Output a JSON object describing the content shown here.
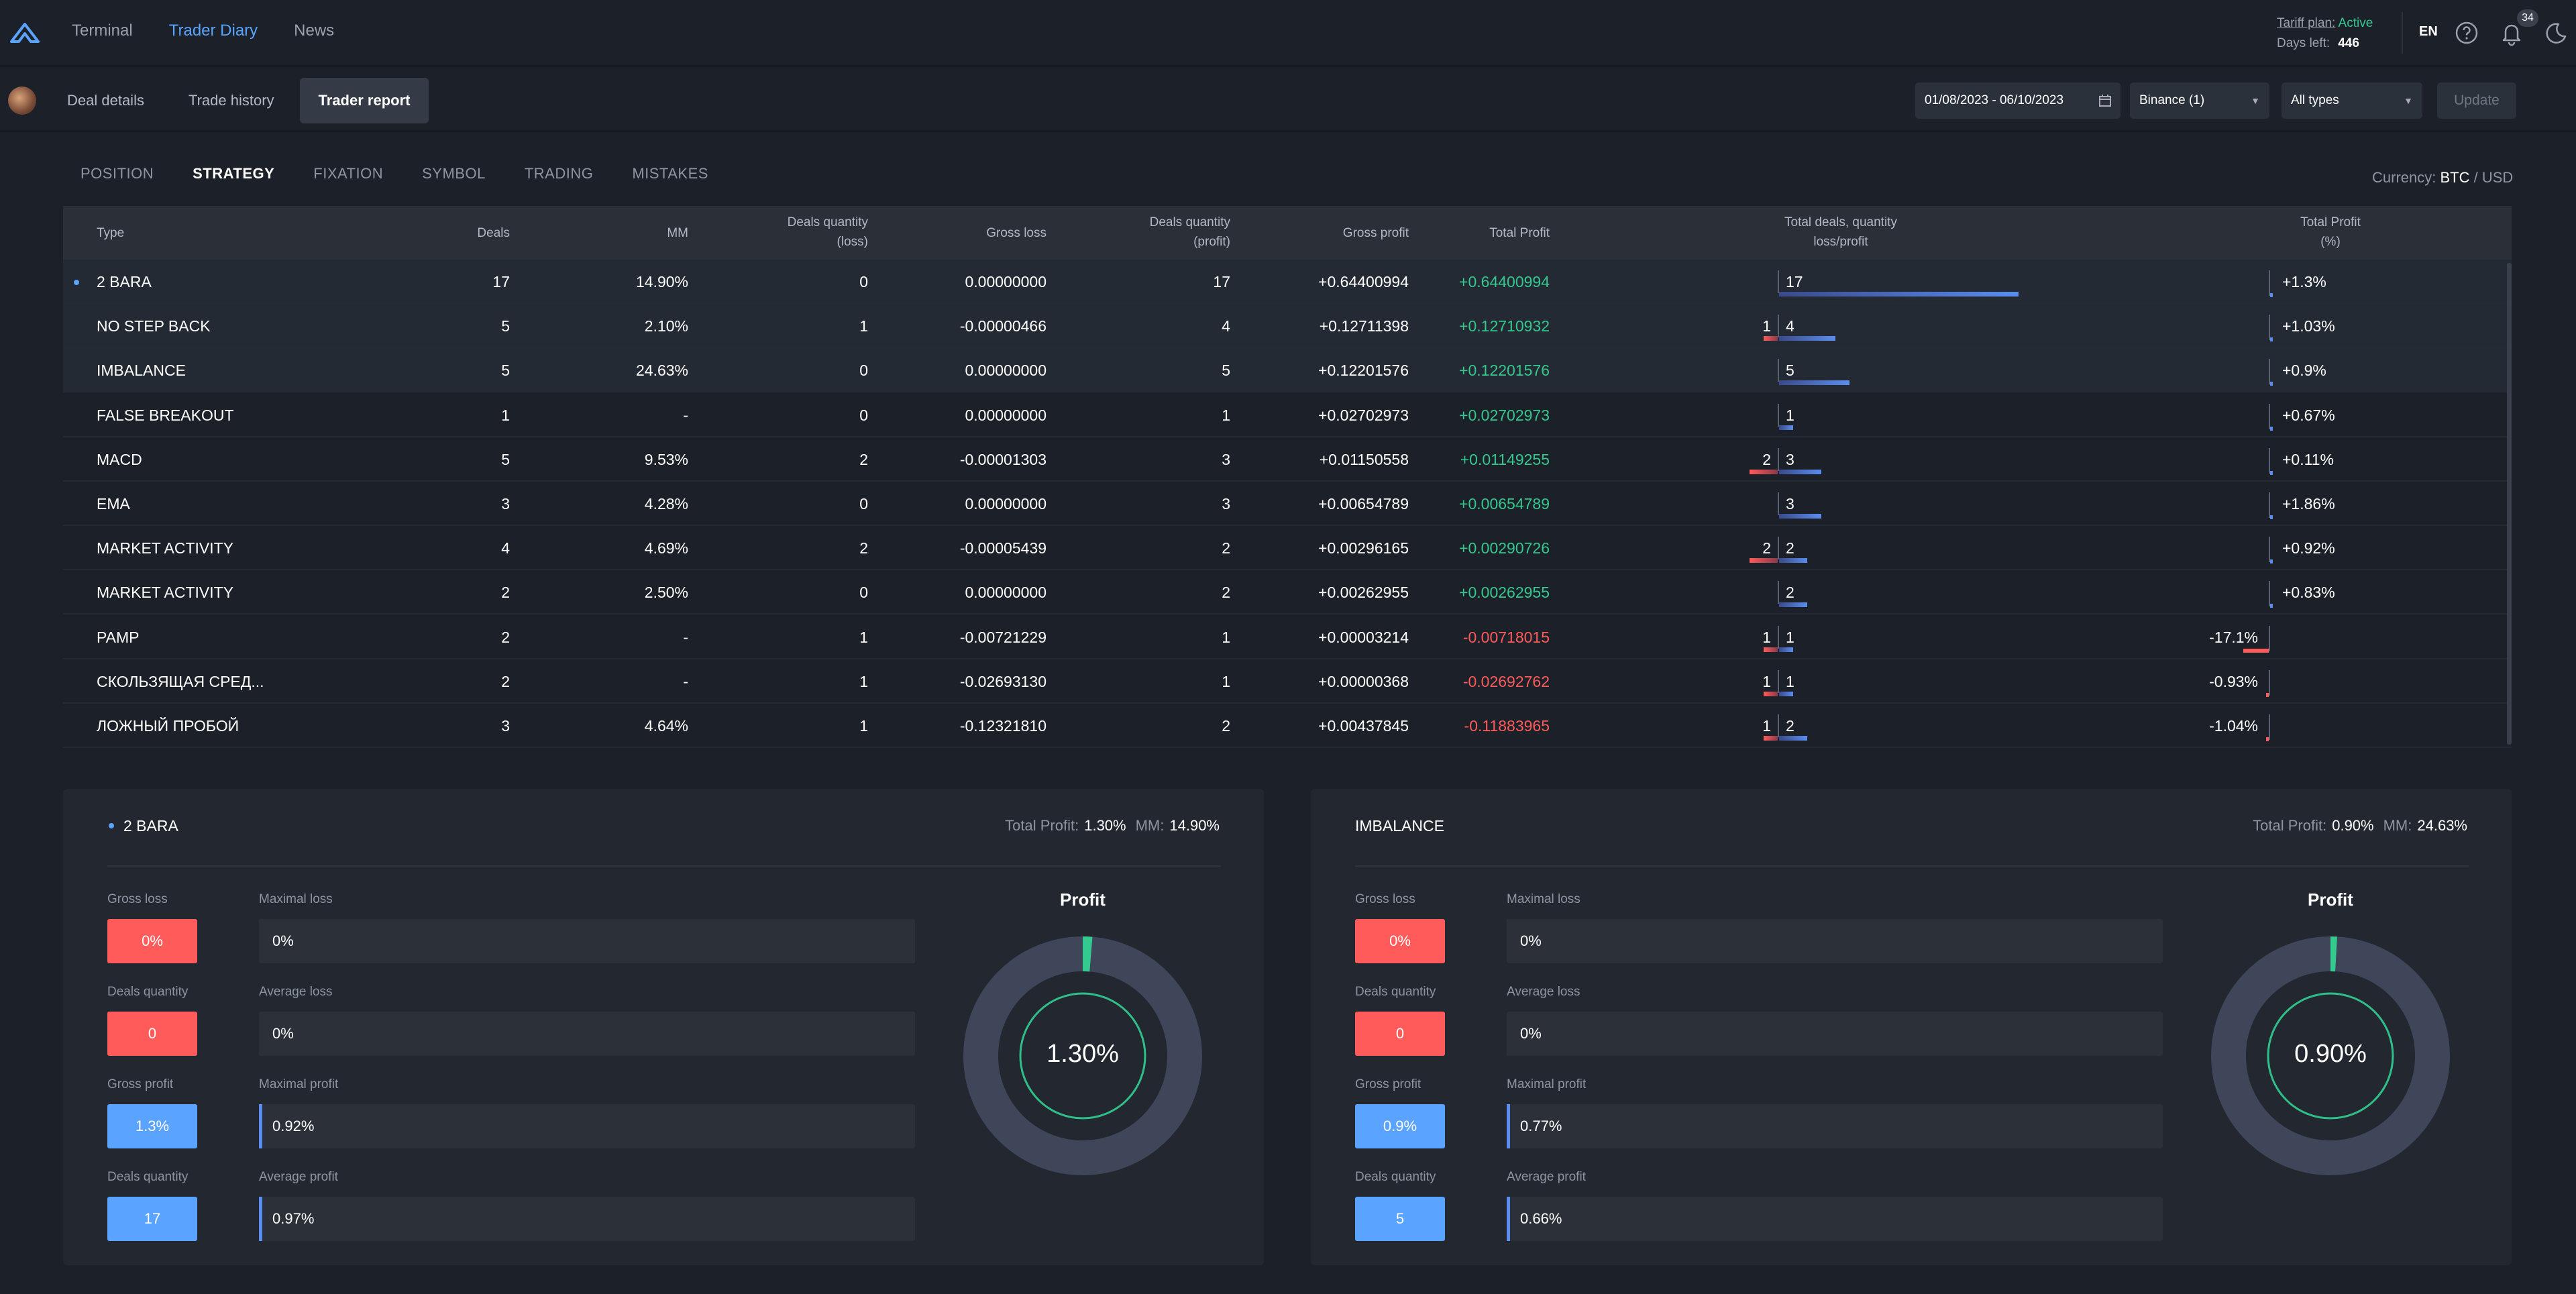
{
  "topnav": {
    "items": [
      "Terminal",
      "Trader Diary",
      "News"
    ],
    "active": 1
  },
  "tariff": {
    "label": "Tariff plan:",
    "status": "Active",
    "days_label": "Days left:",
    "days_value": "446"
  },
  "lang": "EN",
  "notifications": "34",
  "subtabs": [
    "Deal details",
    "Trade history",
    "Trader report"
  ],
  "filters": {
    "date_range": "01/08/2023 - 06/10/2023",
    "exchange": "Binance (1)",
    "types": "All types",
    "update": "Update"
  },
  "filter_tabs": [
    "POSITION",
    "STRATEGY",
    "FIXATION",
    "SYMBOL",
    "TRADING",
    "MISTAKES"
  ],
  "currency": {
    "label": "Currency:",
    "active": "BTC",
    "sep": "/",
    "other": "USD"
  },
  "table": {
    "headers": {
      "type": "Type",
      "deals": "Deals",
      "mm": "MM",
      "dq_loss_1": "Deals quantity",
      "dq_loss_2": "(loss)",
      "gross_loss": "Gross loss",
      "dq_profit_1": "Deals quantity",
      "dq_profit_2": "(profit)",
      "gross_profit": "Gross profit",
      "total_profit": "Total Profit",
      "totdeals_1": "Total deals, quantity",
      "totdeals_2": "loss/profit",
      "tp_pct_1": "Total Profit",
      "tp_pct_2": "(%)"
    },
    "rows": [
      {
        "type": "2 BARA",
        "deals": "17",
        "mm": "14.90%",
        "dq_loss": "0",
        "gross_loss": "0.00000000",
        "dq_profit": "17",
        "gross_profit": "+0.64400994",
        "total_profit": "+0.64400994",
        "loss_cnt": "",
        "profit_cnt": "17",
        "loss_n": 0,
        "profit_n": 17,
        "pct": "+1.3%",
        "pct_v": 1.3
      },
      {
        "type": "NO STEP BACK",
        "deals": "5",
        "mm": "2.10%",
        "dq_loss": "1",
        "gross_loss": "-0.00000466",
        "dq_profit": "4",
        "gross_profit": "+0.12711398",
        "total_profit": "+0.12710932",
        "loss_cnt": "1",
        "profit_cnt": "4",
        "loss_n": 1,
        "profit_n": 4,
        "pct": "+1.03%",
        "pct_v": 1.03
      },
      {
        "type": "IMBALANCE",
        "deals": "5",
        "mm": "24.63%",
        "dq_loss": "0",
        "gross_loss": "0.00000000",
        "dq_profit": "5",
        "gross_profit": "+0.12201576",
        "total_profit": "+0.12201576",
        "loss_cnt": "",
        "profit_cnt": "5",
        "loss_n": 0,
        "profit_n": 5,
        "pct": "+0.9%",
        "pct_v": 0.9
      },
      {
        "type": "FALSE BREAKOUT",
        "deals": "1",
        "mm": "-",
        "dq_loss": "0",
        "gross_loss": "0.00000000",
        "dq_profit": "1",
        "gross_profit": "+0.02702973",
        "total_profit": "+0.02702973",
        "loss_cnt": "",
        "profit_cnt": "1",
        "loss_n": 0,
        "profit_n": 1,
        "pct": "+0.67%",
        "pct_v": 0.67
      },
      {
        "type": "MACD",
        "deals": "5",
        "mm": "9.53%",
        "dq_loss": "2",
        "gross_loss": "-0.00001303",
        "dq_profit": "3",
        "gross_profit": "+0.01150558",
        "total_profit": "+0.01149255",
        "loss_cnt": "2",
        "profit_cnt": "3",
        "loss_n": 2,
        "profit_n": 3,
        "pct": "+0.11%",
        "pct_v": 0.11
      },
      {
        "type": "EMA",
        "deals": "3",
        "mm": "4.28%",
        "dq_loss": "0",
        "gross_loss": "0.00000000",
        "dq_profit": "3",
        "gross_profit": "+0.00654789",
        "total_profit": "+0.00654789",
        "loss_cnt": "",
        "profit_cnt": "3",
        "loss_n": 0,
        "profit_n": 3,
        "pct": "+1.86%",
        "pct_v": 1.86
      },
      {
        "type": "MARKET ACTIVITY",
        "deals": "4",
        "mm": "4.69%",
        "dq_loss": "2",
        "gross_loss": "-0.00005439",
        "dq_profit": "2",
        "gross_profit": "+0.00296165",
        "total_profit": "+0.00290726",
        "loss_cnt": "2",
        "profit_cnt": "2",
        "loss_n": 2,
        "profit_n": 2,
        "pct": "+0.92%",
        "pct_v": 0.92
      },
      {
        "type": "MARKET ACTIVITY",
        "deals": "2",
        "mm": "2.50%",
        "dq_loss": "0",
        "gross_loss": "0.00000000",
        "dq_profit": "2",
        "gross_profit": "+0.00262955",
        "total_profit": "+0.00262955",
        "loss_cnt": "",
        "profit_cnt": "2",
        "loss_n": 0,
        "profit_n": 2,
        "pct": "+0.83%",
        "pct_v": 0.83
      },
      {
        "type": "PAMP",
        "deals": "2",
        "mm": "-",
        "dq_loss": "1",
        "gross_loss": "-0.00721229",
        "dq_profit": "1",
        "gross_profit": "+0.00003214",
        "total_profit": "-0.00718015",
        "loss_cnt": "1",
        "profit_cnt": "1",
        "loss_n": 1,
        "profit_n": 1,
        "pct": "-17.1%",
        "pct_v": -17.1
      },
      {
        "type": "СКОЛЬЗЯЩАЯ СРЕД...",
        "deals": "2",
        "mm": "-",
        "dq_loss": "1",
        "gross_loss": "-0.02693130",
        "dq_profit": "1",
        "gross_profit": "+0.00000368",
        "total_profit": "-0.02692762",
        "loss_cnt": "1",
        "profit_cnt": "1",
        "loss_n": 1,
        "profit_n": 1,
        "pct": "-0.93%",
        "pct_v": -0.93
      },
      {
        "type": "ЛОЖНЫЙ ПРОБОЙ",
        "deals": "3",
        "mm": "4.64%",
        "dq_loss": "1",
        "gross_loss": "-0.12321810",
        "dq_profit": "2",
        "gross_profit": "+0.00437845",
        "total_profit": "-0.11883965",
        "loss_cnt": "1",
        "profit_cnt": "2",
        "loss_n": 1,
        "profit_n": 2,
        "pct": "-1.04%",
        "pct_v": -1.04
      }
    ]
  },
  "panels": [
    {
      "title": "2 BARA",
      "total_profit_label": "Total Profit:",
      "total_profit": "1.30%",
      "mm_label": "MM:",
      "mm": "14.90%",
      "gross_loss_label": "Gross loss",
      "gross_loss": "0%",
      "dq_loss_label": "Deals quantity",
      "dq_loss": "0",
      "gross_profit_label": "Gross profit",
      "gross_profit": "1.3%",
      "dq_profit_label": "Deals quantity",
      "dq_profit": "17",
      "max_loss_label": "Maximal loss",
      "max_loss": "0%",
      "avg_loss_label": "Average loss",
      "avg_loss": "0%",
      "max_profit_label": "Maximal profit",
      "max_profit": "0.92%",
      "avg_profit_label": "Average profit",
      "avg_profit": "0.97%",
      "donut_title": "Profit",
      "donut_value": "1.30%",
      "donut_fraction": 0.013
    },
    {
      "title": "IMBALANCE",
      "total_profit_label": "Total Profit:",
      "total_profit": "0.90%",
      "mm_label": "MM:",
      "mm": "24.63%",
      "gross_loss_label": "Gross loss",
      "gross_loss": "0%",
      "dq_loss_label": "Deals quantity",
      "dq_loss": "0",
      "gross_profit_label": "Gross profit",
      "gross_profit": "0.9%",
      "dq_profit_label": "Deals quantity",
      "dq_profit": "5",
      "max_loss_label": "Maximal loss",
      "max_loss": "0%",
      "avg_loss_label": "Average loss",
      "avg_loss": "0%",
      "max_profit_label": "Maximal profit",
      "max_profit": "0.77%",
      "avg_profit_label": "Average profit",
      "avg_profit": "0.66%",
      "donut_title": "Profit",
      "donut_value": "0.90%",
      "donut_fraction": 0.009
    }
  ],
  "colors": {
    "accent": "#5aa3ff",
    "profit": "#34c98e",
    "loss": "#ff5b5b",
    "bar_profit": "#5a8dee",
    "donut_ring": "#3f4659"
  }
}
